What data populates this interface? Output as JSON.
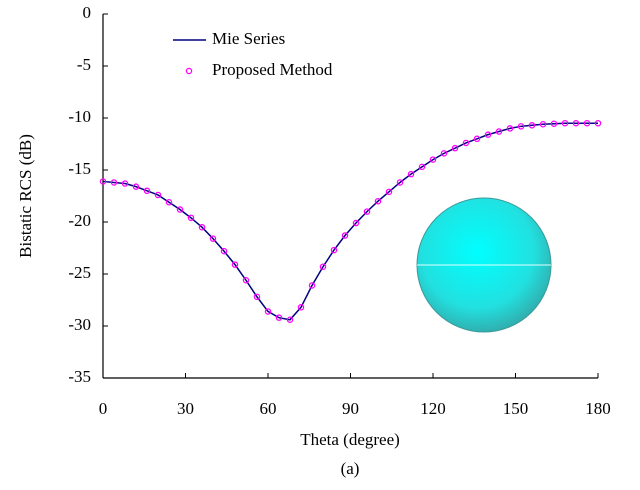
{
  "chart_data": {
    "type": "line",
    "x_label": "Theta (degree)",
    "y_label": "Bistatic RCS (dB)",
    "caption": "(a)",
    "x": [
      0,
      4,
      8,
      12,
      16,
      20,
      24,
      28,
      32,
      36,
      40,
      44,
      48,
      52,
      56,
      60,
      64,
      68,
      72,
      76,
      80,
      84,
      88,
      92,
      96,
      100,
      104,
      108,
      112,
      116,
      120,
      124,
      128,
      132,
      136,
      140,
      144,
      148,
      152,
      156,
      160,
      164,
      168,
      172,
      176,
      180
    ],
    "series": [
      {
        "name": "Mie Series",
        "color": "#000080",
        "style": "line",
        "values": [
          -16.1,
          -16.2,
          -16.3,
          -16.6,
          -17.0,
          -17.4,
          -18.1,
          -18.8,
          -19.6,
          -20.5,
          -21.6,
          -22.8,
          -24.1,
          -25.6,
          -27.2,
          -28.6,
          -29.2,
          -29.4,
          -28.2,
          -26.1,
          -24.3,
          -22.7,
          -21.3,
          -20.1,
          -19.0,
          -18.0,
          -17.1,
          -16.2,
          -15.4,
          -14.7,
          -14.0,
          -13.4,
          -12.9,
          -12.4,
          -12.0,
          -11.6,
          -11.3,
          -11.0,
          -10.8,
          -10.7,
          -10.6,
          -10.55,
          -10.5,
          -10.5,
          -10.5,
          -10.5
        ]
      },
      {
        "name": "Proposed Method",
        "color": "#ff00ff",
        "style": "marker",
        "values": [
          -16.1,
          -16.2,
          -16.3,
          -16.6,
          -17.0,
          -17.4,
          -18.1,
          -18.8,
          -19.6,
          -20.5,
          -21.6,
          -22.8,
          -24.1,
          -25.6,
          -27.2,
          -28.6,
          -29.2,
          -29.4,
          -28.2,
          -26.1,
          -24.3,
          -22.7,
          -21.3,
          -20.1,
          -19.0,
          -18.0,
          -17.1,
          -16.2,
          -15.4,
          -14.7,
          -14.0,
          -13.4,
          -12.9,
          -12.4,
          -12.0,
          -11.6,
          -11.3,
          -11.0,
          -10.8,
          -10.7,
          -10.6,
          -10.55,
          -10.5,
          -10.5,
          -10.5,
          -10.5
        ]
      }
    ],
    "xlim": [
      0,
      180
    ],
    "xticks": [
      0,
      30,
      60,
      90,
      120,
      150,
      180
    ],
    "ylim": [
      -35,
      0
    ],
    "yticks": [
      0,
      -5,
      -10,
      -15,
      -20,
      -25,
      -30,
      -35
    ],
    "grid": false
  }
}
